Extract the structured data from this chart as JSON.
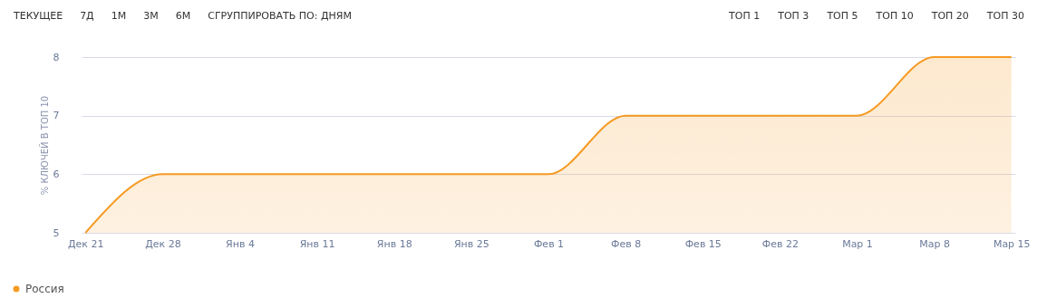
{
  "chart_data": {
    "type": "area",
    "ylabel": "% КЛЮЧЕЙ В ТОП 10",
    "categories": [
      "Дек 21",
      "Дек 28",
      "Янв 4",
      "Янв 11",
      "Янв 18",
      "Янв 25",
      "Фев 1",
      "Фев 8",
      "Фев 15",
      "Фев 22",
      "Мар 1",
      "Мар 8",
      "Мар 15"
    ],
    "series": [
      {
        "name": "Россия",
        "color": "#f59a23",
        "values": [
          5,
          6,
          6,
          6,
          6,
          6,
          6,
          7,
          7,
          7,
          7,
          8,
          8
        ]
      }
    ],
    "ylim": [
      5,
      8
    ],
    "yticks": [
      5,
      6,
      7,
      8
    ],
    "grid": "y",
    "legend": "bottom",
    "marker": "none",
    "line_style": "solid",
    "annotations": [
      "ТЕКУЩЕЕ",
      "7Д",
      "1М",
      "3М",
      "6М",
      "СГРУППИРОВАТЬ ПО: ДНЯМ",
      "ТОП 1",
      "ТОП 3",
      "ТОП 5",
      "ТОП 10",
      "ТОП 20",
      "ТОП 30"
    ]
  }
}
